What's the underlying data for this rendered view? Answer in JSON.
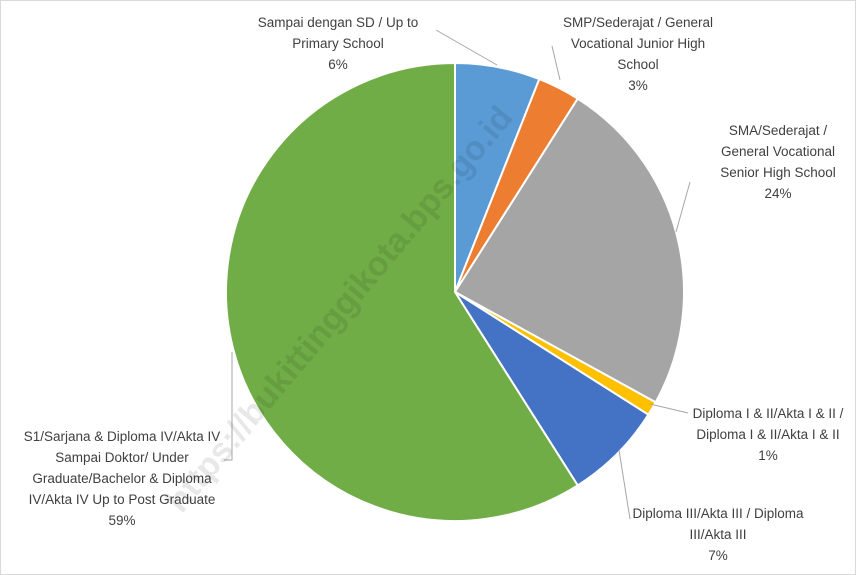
{
  "chart_data": {
    "type": "pie",
    "categories": [
      "Sampai dengan SD / Up to Primary School",
      "SMP/Sederajat / General Vocational Junior High School",
      "SMA/Sederajat / General Vocational Senior High School",
      "Diploma I & II/Akta I & II / Diploma I & II/Akta I & II",
      "Diploma III/Akta III / Diploma III/Akta III",
      "S1/Sarjana & Diploma IV/Akta IV Sampai Doktor/ Under Graduate/Bachelor & Diploma IV/Akta IV Up to Post Graduate"
    ],
    "values": [
      6,
      3,
      24,
      1,
      7,
      59
    ],
    "value_labels": [
      "6%",
      "3%",
      "24%",
      "1%",
      "7%",
      "59%"
    ],
    "colors": [
      "#5b9bd5",
      "#ed7d31",
      "#a5a5a5",
      "#ffc000",
      "#4472c4",
      "#70ad47"
    ],
    "watermark": "https://bukittinggikota.bps.go.id"
  }
}
